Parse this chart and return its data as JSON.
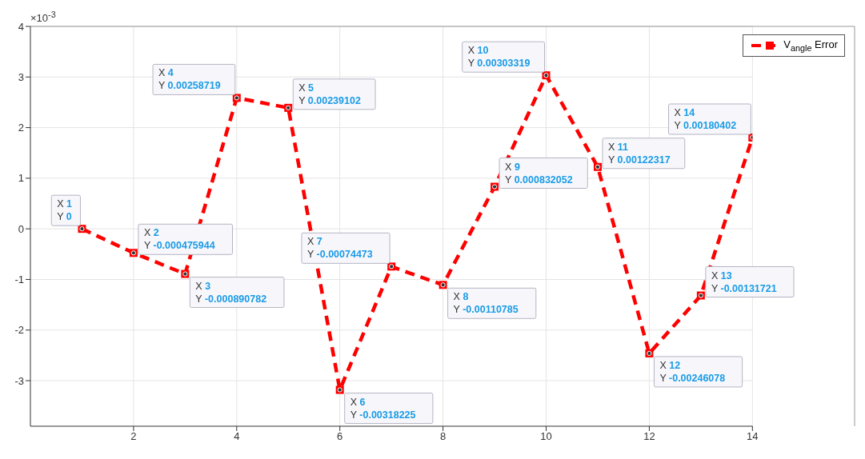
{
  "chart_data": {
    "type": "line",
    "x": [
      1,
      2,
      3,
      4,
      5,
      6,
      7,
      8,
      9,
      10,
      11,
      12,
      13,
      14
    ],
    "series": [
      {
        "name": "V$_{angle}$ Error",
        "color": "#ff0000",
        "values": [
          0,
          -0.476,
          -0.891,
          2.587,
          2.391,
          -3.182,
          -0.745,
          -1.108,
          0.832,
          3.033,
          1.223,
          -2.461,
          -1.317,
          1.804
        ],
        "value_labels": [
          "X 1\nY 0",
          "X 2\nY -0.000475944",
          "X 3\nY -0.000890782",
          "X 4\nY 0.00258719",
          "X 5\nY 0.00239102",
          "X 6\nY -0.00318225",
          "X 7\nY -0.00074473",
          "X 8\nY -0.00110785",
          "X 9\nY 0.000832052",
          "X 10\nY 0.00303319",
          "X 11\nY 0.00122317",
          "X 12\nY -0.00246078",
          "X 13\nY -0.00131721",
          "X 14\nY 0.00180402"
        ]
      }
    ],
    "xlim": [
      0,
      14
    ],
    "xticks": [
      2,
      4,
      6,
      8,
      10,
      12,
      14
    ],
    "ylim": [
      -3.9,
      4
    ],
    "yticks": [
      -3,
      -2,
      -1,
      0,
      1,
      2,
      3,
      4
    ],
    "annotations": [
      "×10$^{-3}$"
    ],
    "grid": true,
    "legend": "top right",
    "marker": "square",
    "line_style": "dashed"
  }
}
